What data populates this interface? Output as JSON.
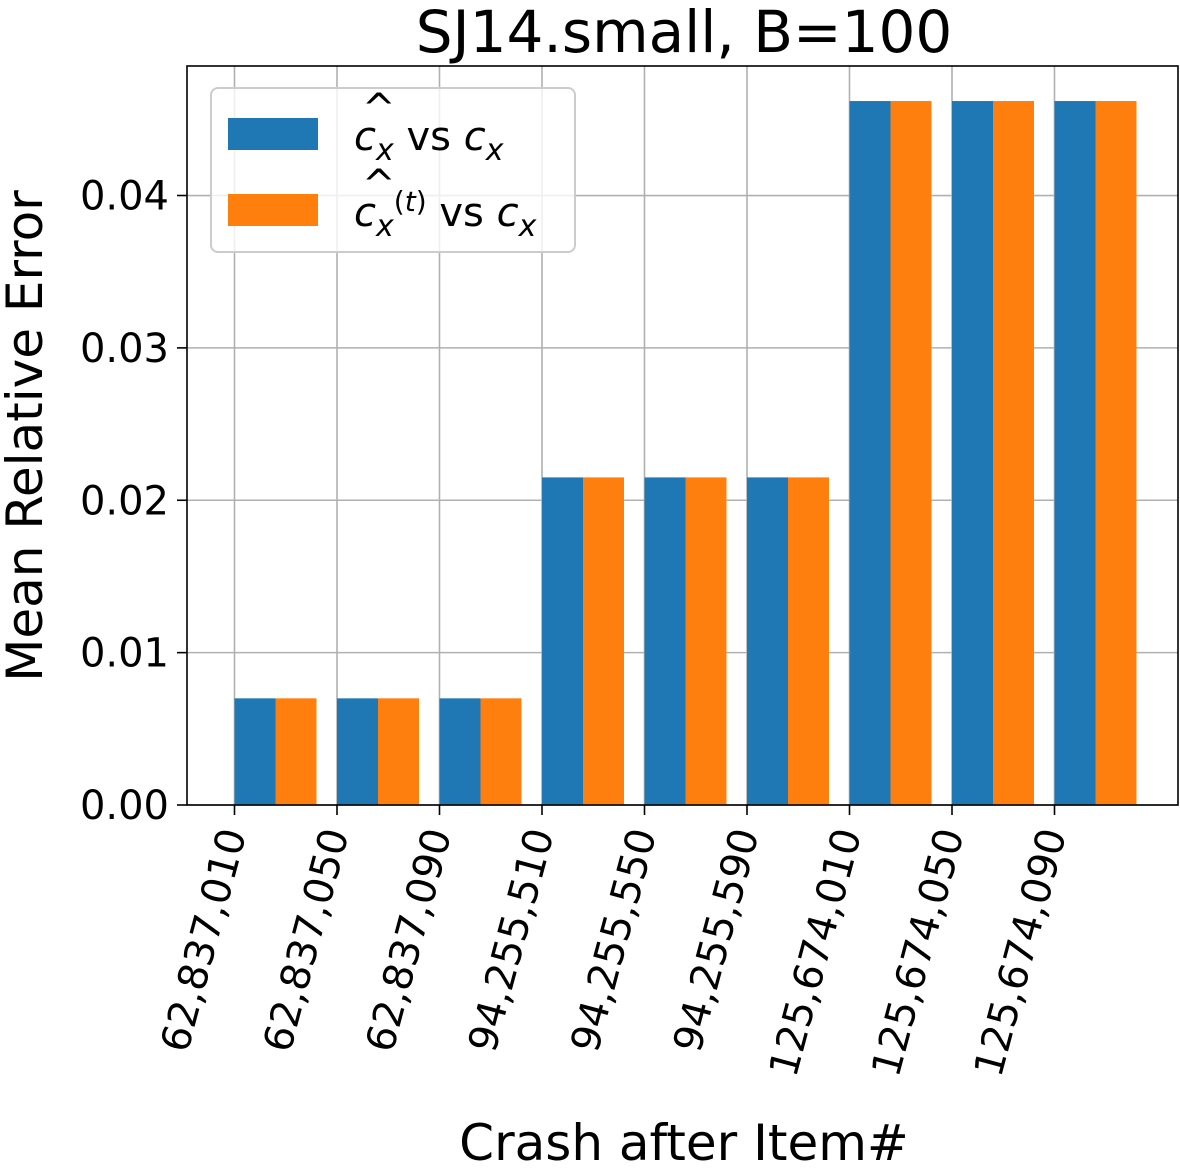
{
  "chart_data": {
    "type": "bar",
    "title": "SJ14.small, B=100",
    "xlabel": "Crash after Item#",
    "ylabel": "Mean Relative Error",
    "categories": [
      "62,837,010",
      "62,837,050",
      "62,837,090",
      "94,255,510",
      "94,255,550",
      "94,255,590",
      "125,674,010",
      "125,674,050",
      "125,674,090"
    ],
    "series": [
      {
        "name": "ĉx vs cx",
        "color": "#1f77b4",
        "values": [
          0.007,
          0.007,
          0.007,
          0.0215,
          0.0215,
          0.0215,
          0.0462,
          0.0462,
          0.0462
        ]
      },
      {
        "name": "ĉx(t) vs cx",
        "color": "#ff7f0e",
        "values": [
          0.007,
          0.007,
          0.007,
          0.0215,
          0.0215,
          0.0215,
          0.0462,
          0.0462,
          0.0462
        ]
      }
    ],
    "yticks": [
      "0.00",
      "0.01",
      "0.02",
      "0.03",
      "0.04"
    ],
    "ylim": [
      0,
      0.0485
    ],
    "grid": true,
    "legend_location": "upper-left"
  }
}
